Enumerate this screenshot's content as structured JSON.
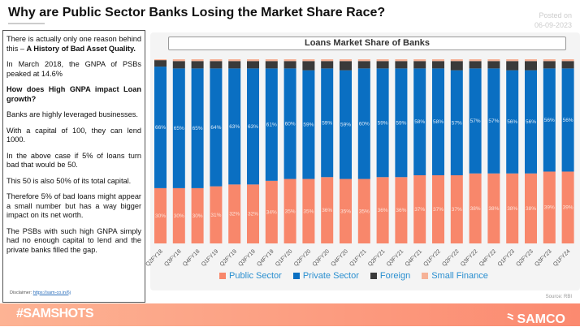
{
  "header": {
    "title": "Why are Public Sector Banks Losing the Market Share Race?",
    "posted_label": "Posted on",
    "posted_date": "06-09-2023"
  },
  "text": {
    "p1a": "There is actually only one reason behind this – ",
    "p1b": "A History of Bad Asset Quality.",
    "p2": "In March 2018, the GNPA of PSBs peaked at 14.6%",
    "p3": "How does High GNPA impact Loan growth?",
    "p4": "Banks are highly leveraged businesses.",
    "p5": "With a capital of 100, they can lend 1000.",
    "p6": "In the above case if 5% of loans turn bad that would be 50.",
    "p7": "This 50 is also 50% of its total capital.",
    "p8": "Therefore 5% of bad loans might appear a small number but has a way bigger impact on its net worth.",
    "p9": "The PSBs with such high GNPA simply had no enough capital to lend and the private banks filled the gap.",
    "disclaimer_label": "Disclaimer: ",
    "disclaimer_link": "https://sam-co.in/6j"
  },
  "source": "Source: RBI",
  "footer": {
    "tag": "#SAMSHOTS",
    "brand": "SAMCO"
  },
  "chart_data": {
    "type": "bar",
    "stacked": true,
    "title": "Loans Market Share of Banks",
    "ylim": [
      0,
      100
    ],
    "legend": "bottom",
    "categories": [
      "Q2FY18",
      "Q3FY18",
      "Q4FY18",
      "Q1FY19",
      "Q2FY19",
      "Q3FY19",
      "Q4FY19",
      "Q1FY20",
      "Q2FY20",
      "Q3FY20",
      "Q4FY20",
      "Q1FY21",
      "Q2FY21",
      "Q3FY21",
      "Q4FY21",
      "Q1FY22",
      "Q2FY22",
      "Q3FY22",
      "Q4FY22",
      "Q1FY23",
      "Q2FY23",
      "Q3FY23",
      "Q1FY24"
    ],
    "series": [
      {
        "name": "Public Sector",
        "color": "#f8876b",
        "values": [
          30,
          30,
          30,
          31,
          32,
          32,
          34,
          35,
          35,
          36,
          35,
          35,
          36,
          36,
          37,
          37,
          37,
          38,
          38,
          38,
          38,
          39,
          39
        ]
      },
      {
        "name": "Private Sector",
        "color": "#0a6fc2",
        "values": [
          66,
          65,
          65,
          64,
          63,
          63,
          61,
          60,
          59,
          59,
          59,
          60,
          59,
          59,
          58,
          58,
          57,
          57,
          57,
          56,
          56,
          56,
          56
        ]
      },
      {
        "name": "Foreign",
        "color": "#3a3a3a",
        "values": [
          3.5,
          4,
          4,
          4,
          4,
          4,
          4,
          4,
          5,
          4,
          5,
          4,
          4,
          4,
          4,
          4,
          5,
          4,
          4,
          5,
          5,
          4,
          4
        ]
      },
      {
        "name": "Small Finance",
        "color": "#f6b297",
        "values": [
          0.5,
          1,
          1,
          1,
          1,
          1,
          1,
          1,
          1,
          1,
          1,
          1,
          1,
          1,
          1,
          1,
          1,
          1,
          1,
          1,
          1,
          1,
          1
        ]
      }
    ]
  }
}
